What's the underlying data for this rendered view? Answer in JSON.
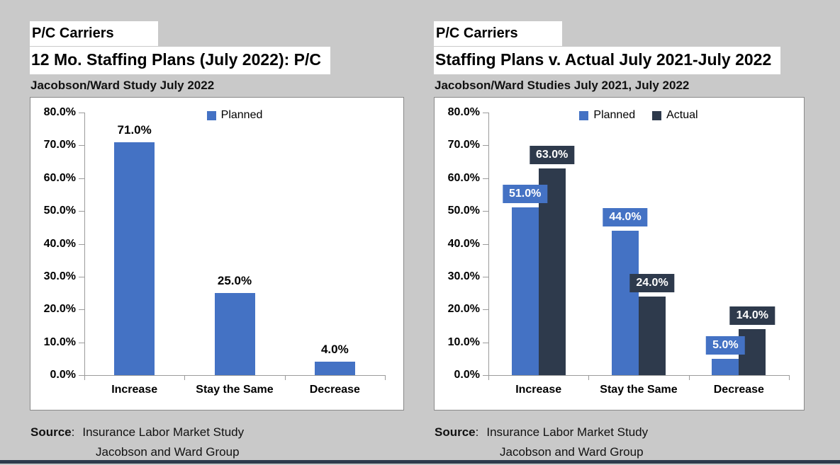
{
  "page": {
    "background_color": "#c9c9c9",
    "footer_bar_color": "#2e3a4c",
    "axis_color": "#9b9b9b"
  },
  "charts": [
    {
      "badge": "P/C Carriers",
      "title": "12 Mo. Staffing Plans (July 2022): P/C",
      "subtitle": "Jacobson/Ward Study July 2022",
      "source": {
        "label": "Source",
        "separator": ":",
        "text": "Insurance Labor Market Study",
        "line2": "Jacobson and Ward Group"
      }
    },
    {
      "badge": "P/C Carriers",
      "title": "Staffing Plans v. Actual July 2021-July 2022",
      "subtitle": "Jacobson/Ward Studies July 2021, July 2022",
      "source": {
        "label": "Source",
        "separator": ":",
        "text": "Insurance Labor Market Study",
        "line2": "Jacobson and Ward Group"
      }
    }
  ],
  "chart_data": [
    {
      "type": "bar",
      "title": "12 Mo. Staffing Plans (July 2022): P/C",
      "categories": [
        "Increase",
        "Stay the Same",
        "Decrease"
      ],
      "series": [
        {
          "name": "Planned",
          "color": "#4472c4",
          "values": [
            71.0,
            25.0,
            4.0
          ]
        }
      ],
      "xlabel": "",
      "ylabel": "",
      "ylim": [
        0,
        80
      ],
      "ytick_step": 10,
      "ytick_format": "percent_1dp",
      "grid": false,
      "legend_position": "top-center",
      "data_label_style": "plain-black-above"
    },
    {
      "type": "bar",
      "title": "Staffing Plans v. Actual July 2021-July 2022",
      "categories": [
        "Increase",
        "Stay the Same",
        "Decrease"
      ],
      "series": [
        {
          "name": "Planned",
          "color": "#4472c4",
          "values": [
            51.0,
            44.0,
            5.0
          ]
        },
        {
          "name": "Actual",
          "color": "#2e3a4c",
          "values": [
            63.0,
            24.0,
            14.0
          ]
        }
      ],
      "xlabel": "",
      "ylabel": "",
      "ylim": [
        0,
        80
      ],
      "ytick_step": 10,
      "ytick_format": "percent_1dp",
      "grid": false,
      "legend_position": "top-center",
      "data_label_style": "boxed-series-color"
    }
  ]
}
